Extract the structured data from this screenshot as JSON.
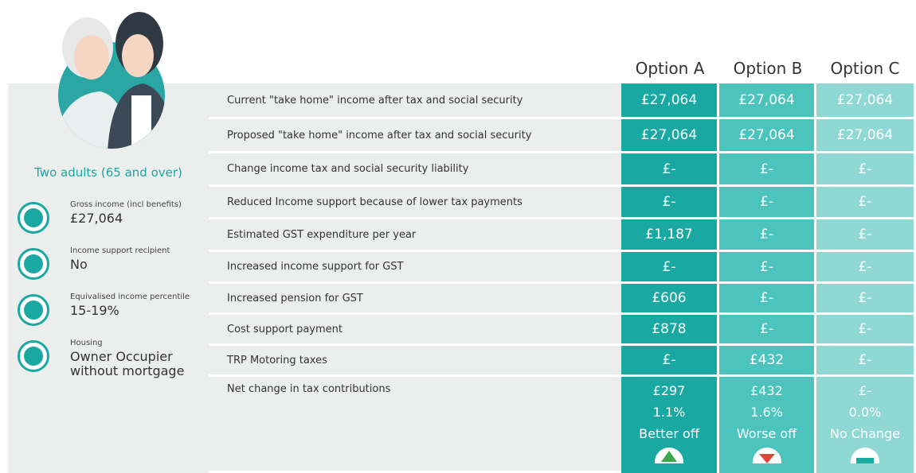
{
  "profile": {
    "title": "Two adults (65 and over)",
    "items": [
      {
        "label": "Gross income (incl benefits)",
        "value": "£27,064"
      },
      {
        "label": "Income support recipient",
        "value": "No"
      },
      {
        "label": "Equivalised income percentile",
        "value": "15-19%"
      },
      {
        "label": "Housing",
        "value": "Owner Occupier without mortgage"
      }
    ]
  },
  "table": {
    "columns": [
      "Option A",
      "Option B",
      "Option C"
    ],
    "rows": [
      {
        "label": "Current \"take home\" income after tax and social security",
        "values": [
          "£27,064",
          "£27,064",
          "£27,064"
        ]
      },
      {
        "label": "Proposed \"take home\" income after tax and social security",
        "values": [
          "£27,064",
          "£27,064",
          "£27,064"
        ]
      },
      {
        "label": "Change income tax and social security liability",
        "values": [
          "£-",
          "£-",
          "£-"
        ]
      },
      {
        "label": "Reduced Income support because of lower tax payments",
        "values": [
          "£-",
          "£-",
          "£-"
        ]
      },
      {
        "label": "Estimated GST expenditure per year",
        "values": [
          "£1,187",
          "£-",
          "£-"
        ]
      },
      {
        "label": "Increased income support for GST",
        "values": [
          "£-",
          "£-",
          "£-"
        ]
      },
      {
        "label": "Increased pension for GST",
        "values": [
          "£606",
          "£-",
          "£-"
        ]
      },
      {
        "label": "Cost support payment",
        "values": [
          "£878",
          "£-",
          "£-"
        ]
      },
      {
        "label": "TRP Motoring taxes",
        "values": [
          "£-",
          "£432",
          "£-"
        ]
      }
    ],
    "summary": {
      "label": "Net change in tax contributions",
      "amounts": [
        "£297",
        "£432",
        "£-"
      ],
      "percents": [
        "1.1%",
        "1.6%",
        "0.0%"
      ],
      "outcomes": [
        "Better off",
        "Worse off",
        "No Change"
      ]
    }
  }
}
